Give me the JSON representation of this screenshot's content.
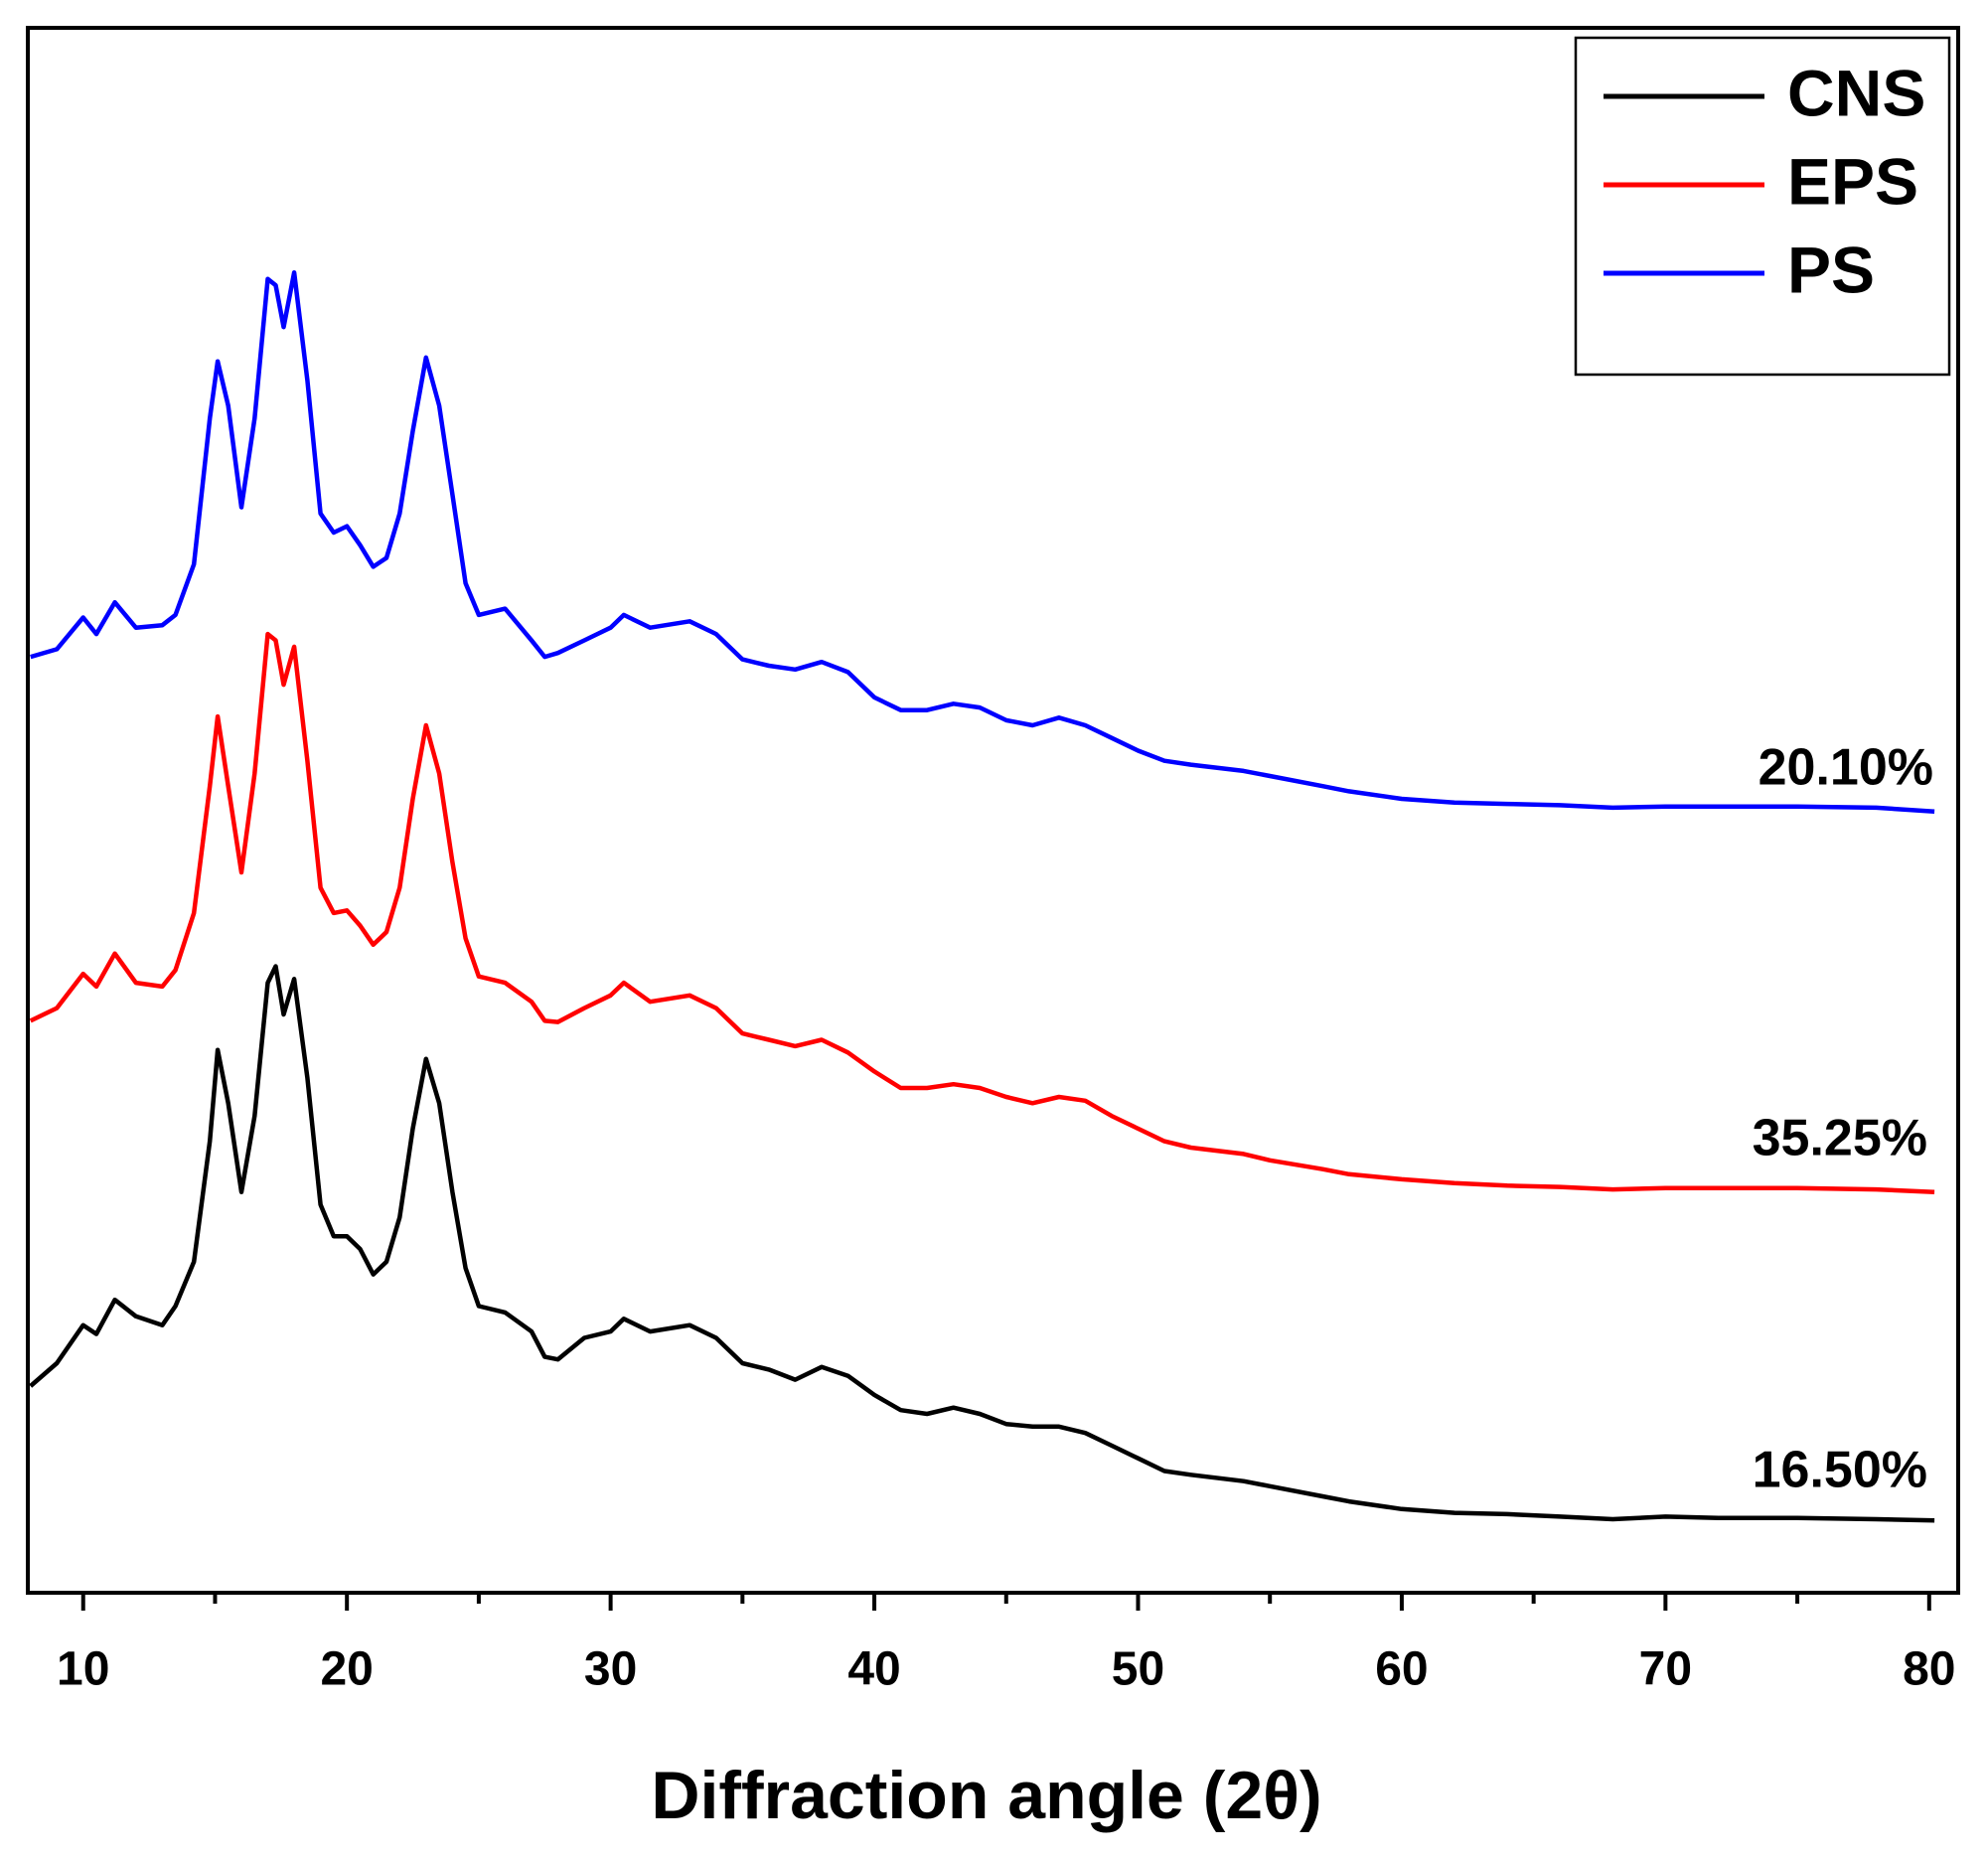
{
  "chart_data": {
    "type": "line",
    "xlabel": "Diffraction angle (2θ)",
    "xlim": [
      7.9,
      81.1
    ],
    "xticks": [
      10,
      20,
      30,
      40,
      50,
      60,
      70,
      80
    ],
    "xminorticks": [
      15,
      25,
      35,
      45,
      55,
      65,
      75
    ],
    "ylim": [
      0,
      1234
    ],
    "legend": "upper right",
    "grid": false,
    "x": [
      8,
      9,
      10,
      10.5,
      11.2,
      12,
      13,
      13.5,
      14.2,
      14.8,
      15.1,
      15.5,
      16,
      16.5,
      17,
      17.3,
      17.6,
      18,
      18.5,
      19,
      19.5,
      20,
      20.5,
      21,
      21.5,
      22,
      22.5,
      23,
      23.5,
      24,
      24.5,
      25,
      26,
      27,
      27.5,
      28,
      29,
      30,
      30.5,
      31.5,
      33,
      34,
      35,
      36,
      37,
      38,
      39,
      40,
      41,
      42,
      43,
      44,
      45,
      46,
      47,
      48,
      49,
      50,
      51,
      52,
      54,
      55,
      57,
      58,
      60,
      62,
      64,
      66,
      68,
      70,
      72,
      75,
      78,
      80.2
    ],
    "series": [
      {
        "name": "CNS",
        "color": "#000000",
        "values": [
          163,
          181,
          211,
          204,
          231,
          218,
          211,
          226,
          261,
          356,
          428,
          386,
          316,
          376,
          481,
          494,
          456,
          484,
          406,
          306,
          281,
          281,
          271,
          251,
          261,
          296,
          366,
          421,
          386,
          316,
          256,
          226,
          221,
          206,
          186,
          184,
          201,
          206,
          216,
          206,
          211,
          201,
          181,
          176,
          168,
          178,
          171,
          156,
          144,
          141,
          146,
          141,
          133,
          131,
          131,
          126,
          116,
          106,
          96,
          93,
          88,
          84,
          76,
          72,
          66,
          63,
          62,
          60,
          58,
          60,
          59,
          59,
          58,
          57
        ]
      },
      {
        "name": "EPS",
        "color": "#ff0000",
        "values": [
          451,
          461,
          488,
          478,
          504,
          481,
          478,
          491,
          536,
          636,
          691,
          636,
          568,
          646,
          756,
          751,
          716,
          746,
          656,
          556,
          536,
          538,
          526,
          511,
          521,
          556,
          626,
          684,
          646,
          576,
          516,
          486,
          481,
          466,
          451,
          450,
          461,
          471,
          481,
          466,
          471,
          461,
          441,
          436,
          431,
          436,
          426,
          411,
          398,
          398,
          401,
          398,
          391,
          386,
          391,
          388,
          376,
          366,
          356,
          351,
          346,
          341,
          334,
          330,
          326,
          323,
          321,
          320,
          318,
          319,
          319,
          319,
          318,
          316
        ]
      },
      {
        "name": "PS",
        "color": "#0000ff",
        "values": [
          738,
          744,
          769,
          756,
          781,
          761,
          763,
          771,
          811,
          926,
          971,
          936,
          856,
          926,
          1036,
          1031,
          998,
          1041,
          956,
          851,
          836,
          841,
          826,
          809,
          816,
          851,
          916,
          974,
          936,
          866,
          796,
          771,
          776,
          751,
          738,
          741,
          751,
          761,
          771,
          761,
          766,
          756,
          736,
          731,
          728,
          734,
          726,
          706,
          696,
          696,
          701,
          698,
          688,
          684,
          690,
          684,
          674,
          664,
          656,
          653,
          648,
          644,
          636,
          632,
          626,
          623,
          622,
          621,
          619,
          620,
          620,
          620,
          619,
          616
        ]
      }
    ],
    "annotations": [
      "20.10%",
      "35.25%",
      "16.50%"
    ]
  }
}
